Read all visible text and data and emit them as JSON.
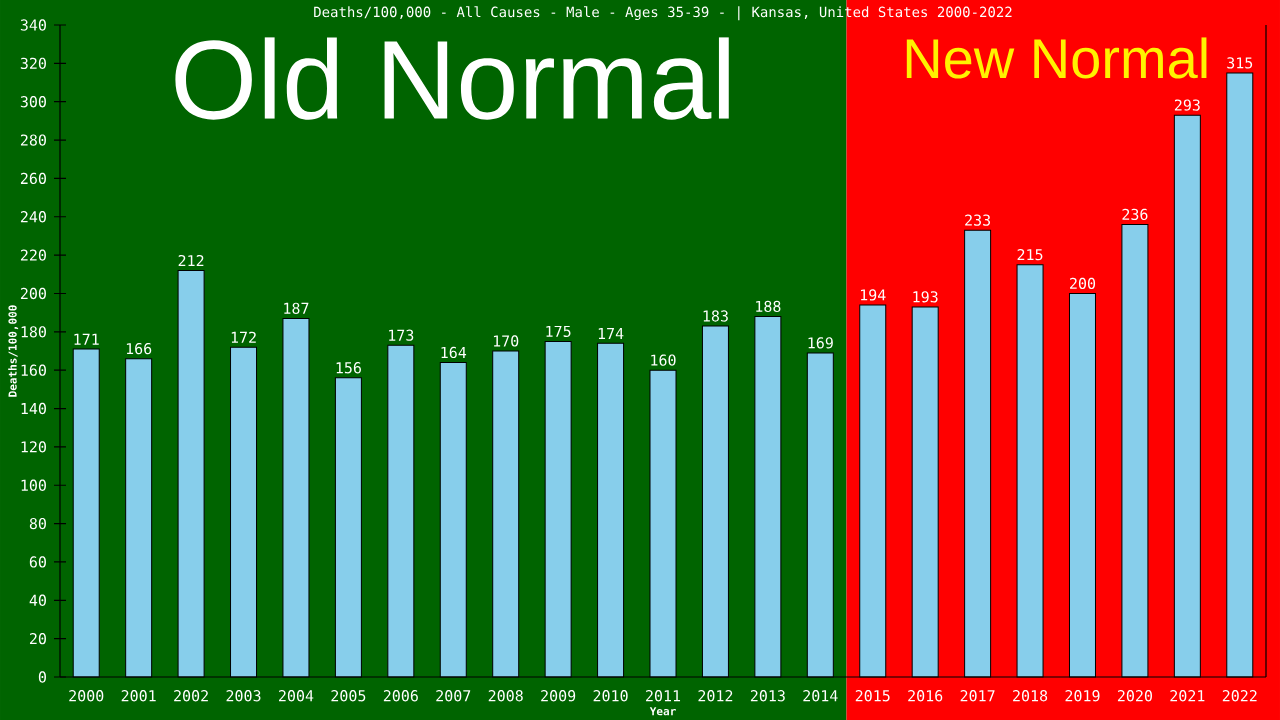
{
  "chart_data": {
    "type": "bar",
    "title": "Deaths/100,000 - All Causes - Male - Ages 35-39 -  | Kansas, United States 2000-2022",
    "xlabel": "Year",
    "ylabel": "Deaths/100,000",
    "categories": [
      "2000",
      "2001",
      "2002",
      "2003",
      "2004",
      "2005",
      "2006",
      "2007",
      "2008",
      "2009",
      "2010",
      "2011",
      "2012",
      "2013",
      "2014",
      "2015",
      "2016",
      "2017",
      "2018",
      "2019",
      "2020",
      "2021",
      "2022"
    ],
    "values": [
      171,
      166,
      212,
      172,
      187,
      156,
      173,
      164,
      170,
      175,
      174,
      160,
      183,
      188,
      169,
      194,
      193,
      233,
      215,
      200,
      236,
      293,
      315
    ],
    "color": "#87ceeb",
    "data_labels": true,
    "ylim": [
      0,
      340
    ],
    "yticks": [
      0,
      20,
      40,
      60,
      80,
      100,
      120,
      140,
      160,
      180,
      200,
      220,
      240,
      260,
      280,
      300,
      320,
      340
    ],
    "bands": [
      {
        "axis": "x",
        "from": "2000",
        "to": "2014",
        "label": "Old Normal",
        "color": "#006400"
      },
      {
        "axis": "x",
        "from": "2015",
        "to": "2022",
        "label": "New Normal",
        "color": "#ff0000"
      }
    ]
  }
}
